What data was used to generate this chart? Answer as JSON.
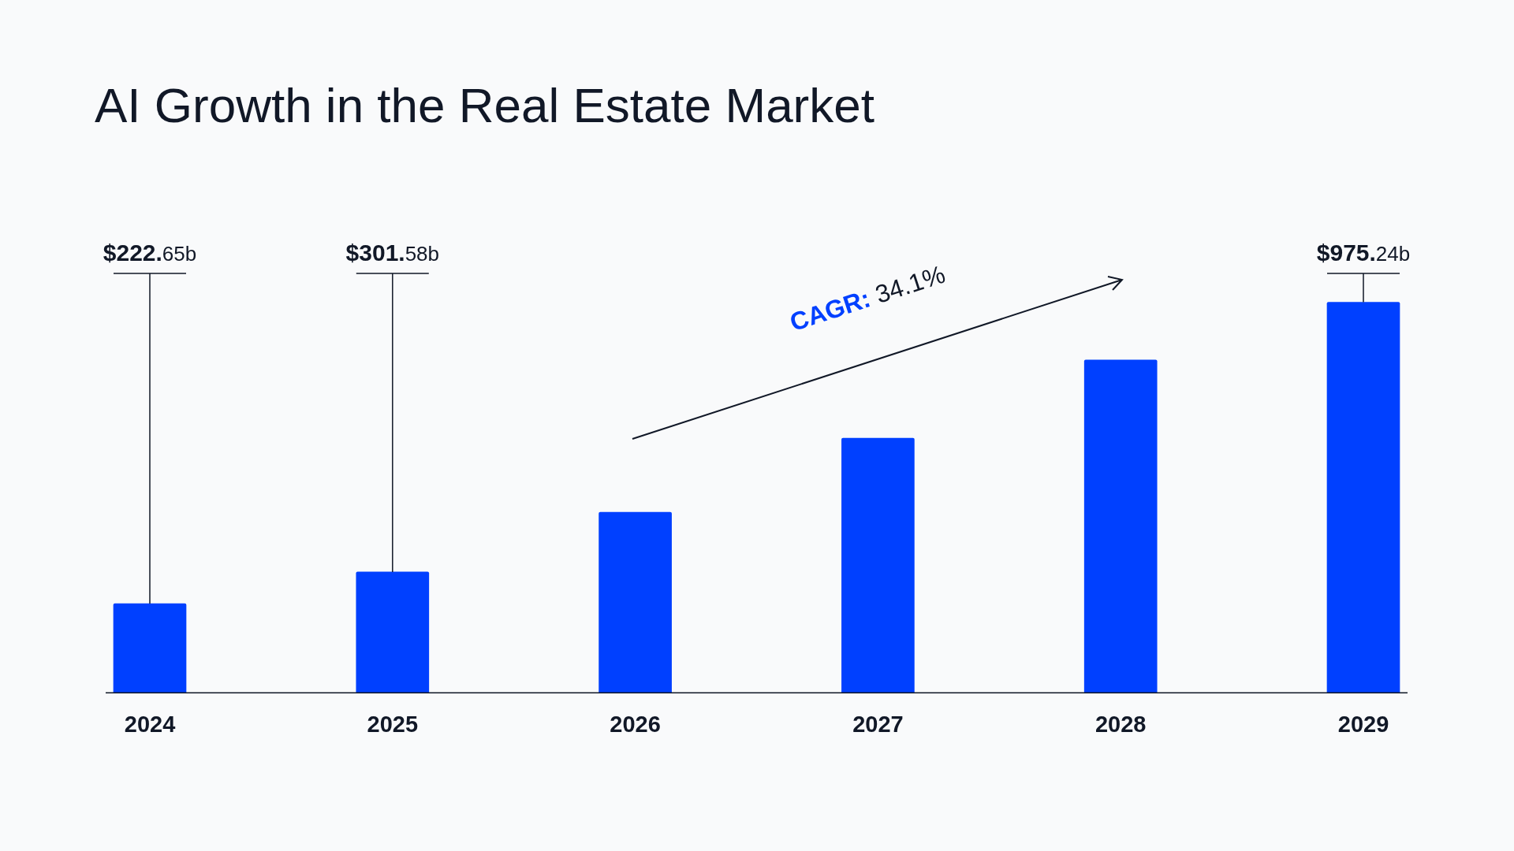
{
  "chart_data": {
    "type": "bar",
    "title": "AI Growth in the Real Estate Market",
    "categories": [
      "2024",
      "2025",
      "2026",
      "2027",
      "2028",
      "2029"
    ],
    "values": [
      222.65,
      301.58,
      451,
      636,
      831,
      975.24
    ],
    "value_labels": [
      "$222.65b",
      "$301.58b",
      null,
      null,
      null,
      "$975.24b"
    ],
    "color": "#0040ff",
    "annotations": [
      "CAGR: 34.1%"
    ]
  }
}
